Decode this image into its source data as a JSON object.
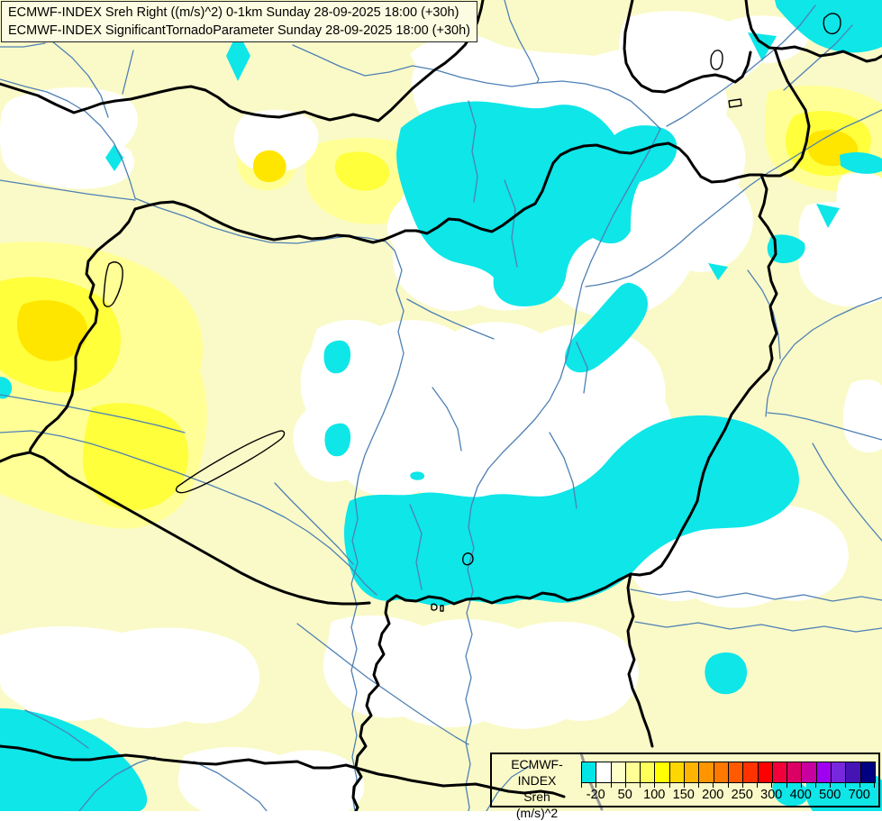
{
  "title_box": {
    "line1": "ECMWF-INDEX Sreh Right ((m/s)^2) 0-1km Sunday 28-09-2025 18:00 (+30h)",
    "line2": "ECMWF-INDEX SignificantTornadoParameter Sunday 28-09-2025 18:00 (+30h)"
  },
  "legend": {
    "label_line1": "ECMWF-INDEX",
    "label_line2": "Sreh",
    "label_line3": "(m/s)^2",
    "tick_labels": [
      "-20",
      "50",
      "100",
      "150",
      "200",
      "250",
      "300",
      "400",
      "500",
      "700"
    ],
    "colors": [
      "#00E6E6",
      "#FFFFFF",
      "#FFFFC8",
      "#FFFF96",
      "#FFFF5A",
      "#FFFF00",
      "#FFD700",
      "#FFB400",
      "#FF9600",
      "#FF7800",
      "#FF5A00",
      "#FF3200",
      "#FF0000",
      "#F2003C",
      "#DC0064",
      "#C800A0",
      "#A000F0",
      "#7828DC",
      "#4614B4",
      "#000082"
    ]
  },
  "map": {
    "palette": {
      "base": "#FAFAC8",
      "white": "#FFFFFF",
      "cyan": "#0EE6E8",
      "yellow_outer": "#FFFF96",
      "yellow_mid": "#FFFF3C",
      "gold": "#FFE600",
      "river": "#4E80B4",
      "border": "#000000",
      "gray": "#999999",
      "title_bg": "#FCFCE2"
    },
    "features": {
      "thick_black_lines": "country borders",
      "thin_blue_lines": "rivers",
      "thin_black_outlines": "lakes"
    }
  }
}
